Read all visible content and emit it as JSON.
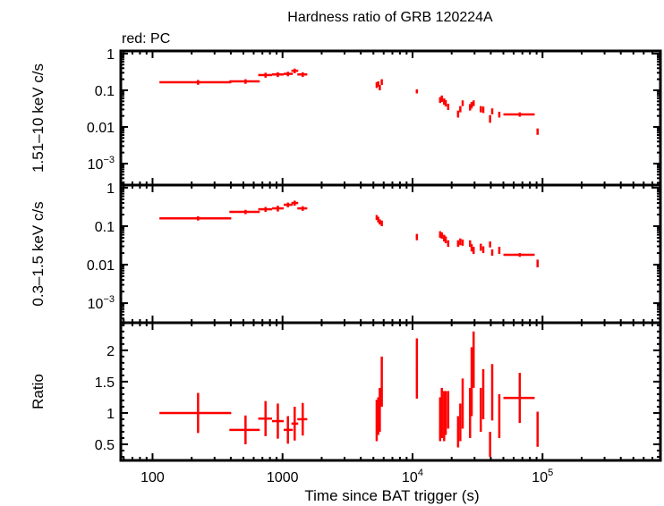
{
  "chart_data": {
    "type": "scatter",
    "title": "Hardness ratio of GRB 120224A",
    "subtitle": "red: PC",
    "xlabel": "Time since BAT trigger (s)",
    "xscale": "log",
    "xlim": [
      57,
      807000
    ],
    "x_ticks": [
      {
        "value": 100,
        "label": "100"
      },
      {
        "value": 1000,
        "label": "1000"
      },
      {
        "value": 10000,
        "base": "10",
        "exp": "4"
      },
      {
        "value": 100000,
        "base": "10",
        "exp": "5"
      }
    ],
    "series_color": "#ff0000",
    "grid": false,
    "x": [
      224,
      519,
      740,
      920,
      1100,
      1240,
      1430,
      5300,
      5450,
      5600,
      5800,
      10800,
      16300,
      16800,
      17500,
      18000,
      18800,
      22400,
      23300,
      24300,
      27700,
      28500,
      29500,
      33500,
      35000,
      39500,
      41000,
      46500,
      66800,
      91600
    ],
    "x_lo": [
      113,
      390,
      650,
      830,
      1020,
      1170,
      1300,
      5250,
      5400,
      5550,
      5750,
      10600,
      16100,
      16600,
      17300,
      17800,
      18600,
      22200,
      23100,
      24100,
      27500,
      28300,
      29300,
      33300,
      34800,
      39300,
      40800,
      46200,
      50000,
      91000
    ],
    "x_hi": [
      403,
      668,
      830,
      1020,
      1200,
      1320,
      1550,
      5350,
      5500,
      5650,
      5850,
      11000,
      16500,
      17000,
      17700,
      18200,
      19000,
      22600,
      23500,
      24500,
      27900,
      28700,
      29700,
      33700,
      35200,
      39700,
      41200,
      46800,
      87000,
      92200
    ],
    "panels": [
      {
        "ylabel": "1.51–10 keV c/s",
        "yscale": "log",
        "ylim": [
          0.00026,
          1.18
        ],
        "y_ticks": [
          {
            "value": 1,
            "label": "1"
          },
          {
            "value": 0.1,
            "label": "0.1"
          },
          {
            "value": 0.01,
            "label": "0.01"
          },
          {
            "value": 0.001,
            "base": "10",
            "exp": "−3"
          }
        ],
        "values": [
          0.166,
          0.175,
          0.26,
          0.27,
          0.28,
          0.34,
          0.27,
          0.14,
          0.15,
          0.12,
          0.17,
          0.094,
          0.055,
          0.06,
          0.05,
          0.045,
          0.036,
          0.023,
          0.031,
          0.045,
          0.035,
          0.04,
          0.045,
          0.031,
          0.03,
          0.017,
          0.027,
          0.022,
          0.022,
          0.0076
        ],
        "errors": [
          0.025,
          0.025,
          0.04,
          0.04,
          0.04,
          0.05,
          0.04,
          0.025,
          0.025,
          0.02,
          0.03,
          0.012,
          0.01,
          0.012,
          0.01,
          0.009,
          0.007,
          0.005,
          0.006,
          0.008,
          0.007,
          0.008,
          0.008,
          0.006,
          0.006,
          0.004,
          0.005,
          0.004,
          0.003,
          0.0015
        ]
      },
      {
        "ylabel": "0.3–1.5 keV c/s",
        "yscale": "log",
        "ylim": [
          0.00031,
          1.17
        ],
        "y_ticks": [
          {
            "value": 1,
            "label": "1"
          },
          {
            "value": 0.1,
            "label": "0.1"
          },
          {
            "value": 0.01,
            "label": "0.01"
          },
          {
            "value": 0.001,
            "base": "10",
            "exp": "−3"
          }
        ],
        "values": [
          0.16,
          0.235,
          0.275,
          0.29,
          0.36,
          0.4,
          0.29,
          0.17,
          0.15,
          0.13,
          0.12,
          0.053,
          0.062,
          0.058,
          0.05,
          0.045,
          0.036,
          0.036,
          0.04,
          0.038,
          0.036,
          0.028,
          0.024,
          0.029,
          0.025,
          0.034,
          0.021,
          0.024,
          0.018,
          0.011
        ],
        "errors": [
          0.02,
          0.03,
          0.04,
          0.05,
          0.05,
          0.06,
          0.04,
          0.025,
          0.025,
          0.02,
          0.02,
          0.01,
          0.012,
          0.011,
          0.01,
          0.009,
          0.007,
          0.007,
          0.008,
          0.007,
          0.007,
          0.006,
          0.005,
          0.006,
          0.005,
          0.006,
          0.004,
          0.005,
          0.002,
          0.0025
        ]
      },
      {
        "ylabel": "Ratio",
        "yscale": "linear",
        "ylim": [
          0.243,
          2.44
        ],
        "y_ticks": [
          {
            "value": 2,
            "label": "2"
          },
          {
            "value": 1.5,
            "label": "1.5"
          },
          {
            "value": 1,
            "label": "1"
          },
          {
            "value": 0.5,
            "label": "0.5"
          }
        ],
        "values": [
          1.0,
          0.73,
          0.91,
          0.87,
          0.73,
          0.83,
          0.9,
          0.88,
          0.95,
          1.05,
          1.5,
          1.71,
          0.9,
          1.0,
          0.95,
          1.0,
          1.05,
          0.7,
          0.85,
          1.15,
          1.0,
          1.5,
          1.85,
          1.05,
          1.3,
          0.5,
          1.33,
          0.95,
          1.24,
          0.74
        ],
        "errors": [
          0.32,
          0.23,
          0.28,
          0.28,
          0.22,
          0.27,
          0.26,
          0.33,
          0.3,
          0.35,
          0.4,
          0.48,
          0.35,
          0.4,
          0.4,
          0.35,
          0.3,
          0.25,
          0.3,
          0.4,
          0.4,
          0.55,
          0.45,
          0.35,
          0.4,
          0.2,
          0.45,
          0.35,
          0.4,
          0.28
        ]
      }
    ]
  }
}
